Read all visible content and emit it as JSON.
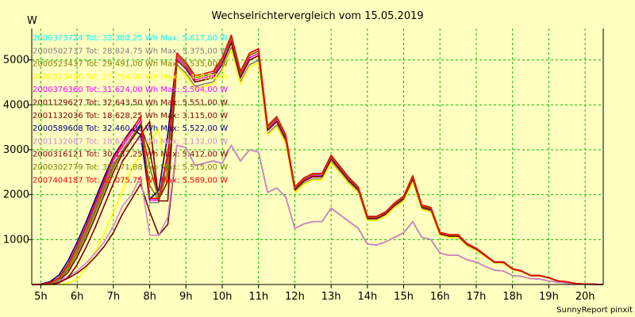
{
  "chart_data": {
    "type": "line",
    "title": "Wechselrichtervergleich vom 15.05.2019",
    "ylabel": "W",
    "xlabel": "",
    "footer": "SunnyReport pinxit",
    "xlim": [
      4.75,
      20.5
    ],
    "ylim": [
      0,
      5700
    ],
    "grid": true,
    "legend_position": "top-left",
    "x_ticks": [
      5,
      6,
      7,
      8,
      9,
      10,
      11,
      12,
      13,
      14,
      15,
      16,
      17,
      18,
      19,
      20
    ],
    "x_tick_labels": [
      "5h",
      "6h",
      "7h",
      "8h",
      "9h",
      "10h",
      "11h",
      "12h",
      "13h",
      "14h",
      "15h",
      "16h",
      "17h",
      "18h",
      "19h",
      "20h"
    ],
    "y_ticks": [
      1000,
      2000,
      3000,
      4000,
      5000
    ],
    "y_tick_labels": [
      "1000",
      "2000",
      "3000",
      "4000",
      "5000"
    ],
    "x": [
      4.75,
      5.0,
      5.25,
      5.5,
      5.75,
      6.0,
      6.25,
      6.5,
      6.75,
      7.0,
      7.25,
      7.5,
      7.75,
      8.0,
      8.25,
      8.5,
      8.75,
      9.0,
      9.25,
      9.5,
      9.75,
      10.0,
      10.25,
      10.5,
      10.75,
      11.0,
      11.25,
      11.5,
      11.75,
      12.0,
      12.25,
      12.5,
      12.75,
      13.0,
      13.25,
      13.5,
      13.75,
      14.0,
      14.25,
      14.5,
      14.75,
      15.0,
      15.25,
      15.5,
      15.75,
      16.0,
      16.25,
      16.5,
      16.75,
      17.0,
      17.25,
      17.5,
      17.75,
      18.0,
      18.25,
      18.5,
      18.75,
      19.0,
      19.25,
      19.5,
      19.75,
      20.0,
      20.25,
      20.5
    ],
    "base_full": [
      0,
      0,
      40,
      150,
      450,
      850,
      1300,
      1800,
      2300,
      2800,
      3100,
      3400,
      3700,
      1900,
      1900,
      2900,
      5100,
      4900,
      4600,
      4650,
      4700,
      5000,
      5500,
      4700,
      5100,
      5200,
      3500,
      3700,
      3300,
      2150,
      2350,
      2450,
      2450,
      2850,
      2600,
      2350,
      2150,
      1500,
      1500,
      1600,
      1800,
      1950,
      2400,
      1750,
      1700,
      1150,
      1100,
      1100,
      900,
      800,
      650,
      500,
      500,
      350,
      300,
      200,
      200,
      150,
      80,
      60,
      20,
      10,
      5,
      0
    ],
    "base_half": [
      0,
      0,
      20,
      80,
      180,
      300,
      480,
      700,
      950,
      1300,
      1750,
      2000,
      2400,
      1100,
      1100,
      1500,
      3100,
      3050,
      2650,
      2700,
      2750,
      2700,
      3100,
      2750,
      3000,
      2950,
      2050,
      2150,
      1950,
      1250,
      1350,
      1400,
      1400,
      1700,
      1550,
      1400,
      1250,
      900,
      880,
      950,
      1050,
      1150,
      1400,
      1050,
      1000,
      700,
      650,
      650,
      550,
      500,
      400,
      320,
      300,
      200,
      180,
      130,
      120,
      80,
      50,
      30,
      10,
      5,
      0,
      0
    ],
    "series": [
      {
        "name": "2000373724",
        "total": "32.380,25 Wh",
        "max": "5.617,00 W",
        "color": "#00FFFF",
        "profile": "full",
        "scale": 1.01,
        "shift": 0.0
      },
      {
        "name": "2000502737",
        "total": "28.824,75 Wh",
        "max": "5.375,00 W",
        "color": "#808080",
        "profile": "full",
        "scale": 0.96,
        "shift": 0.0
      },
      {
        "name": "2000523437",
        "total": "29.491,00 Wh",
        "max": "5.535,00 W",
        "color": "#808000",
        "profile": "full",
        "scale": 0.98,
        "shift": 0.05
      },
      {
        "name": "2000523436",
        "total": "27.794,00 Wh",
        "max": "5.468,00 W",
        "color": "#FFFF00",
        "profile": "full",
        "scale": 0.95,
        "shift": 0.55
      },
      {
        "name": "2000376360",
        "total": "31.624,00 Wh",
        "max": "5.504,00 W",
        "color": "#FF00FF",
        "profile": "full",
        "scale": 0.99,
        "shift": 0.0
      },
      {
        "name": "2001129627",
        "total": "32.643,50 Wh",
        "max": "5.551,00 W",
        "color": "#800000",
        "profile": "full",
        "scale": 1.0,
        "shift": 0.15
      },
      {
        "name": "2001132036",
        "total": "18.628,25 Wh",
        "max": "3.115,00 W",
        "color": "#800000",
        "profile": "half",
        "scale": 1.0,
        "shift": 0.1
      },
      {
        "name": "2000589608",
        "total": "32.460,00 Wh",
        "max": "5.522,00 W",
        "color": "#000080",
        "profile": "full",
        "scale": 1.0,
        "shift": -0.05
      },
      {
        "name": "2001132087",
        "total": "18.630,25 Wh",
        "max": "3.132,00 W",
        "color": "#CC88CC",
        "profile": "half",
        "scale": 1.0,
        "shift": 0.0
      },
      {
        "name": "2000316121",
        "total": "30.137,25 Wh",
        "max": "5.412,00 W",
        "color": "#800000",
        "profile": "full",
        "scale": 0.98,
        "shift": 0.25
      },
      {
        "name": "2000302779",
        "total": "32.171,88 Wh",
        "max": "5.515,00 W",
        "color": "#808000",
        "profile": "full",
        "scale": 1.0,
        "shift": 0.1
      },
      {
        "name": "2007404187",
        "total": "32.075,75 Wh",
        "max": "5.589,00 W",
        "color": "#FF0000",
        "profile": "full",
        "scale": 1.01,
        "shift": 0.0
      }
    ]
  }
}
